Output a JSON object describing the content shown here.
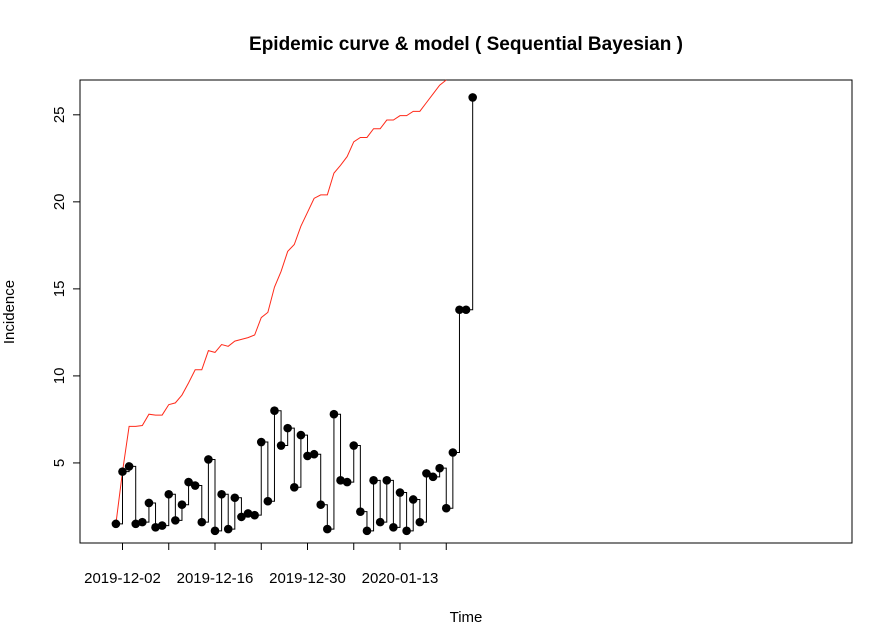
{
  "chart_data": {
    "type": "line",
    "title": "Epidemic curve & model ( Sequential Bayesian )",
    "xlabel": "Time",
    "ylabel": "Incidence",
    "x_start_date": "2019-11-30",
    "x_axis_ticks": [
      "2019-12-02",
      "2019-12-16",
      "2019-12-30",
      "2020-01-13"
    ],
    "y_axis_ticks": [
      5,
      10,
      15,
      20,
      25
    ],
    "ylim": [
      0.4,
      27
    ],
    "grid": false,
    "series": [
      {
        "name": "",
        "style": "step-points",
        "color": "#000000",
        "x": [
          "2019-12-01",
          "2019-12-02",
          "2019-12-03",
          "2019-12-04",
          "2019-12-05",
          "2019-12-06",
          "2019-12-07",
          "2019-12-08",
          "2019-12-09",
          "2019-12-10",
          "2019-12-11",
          "2019-12-12",
          "2019-12-13",
          "2019-12-14",
          "2019-12-15",
          "2019-12-16",
          "2019-12-17",
          "2019-12-18",
          "2019-12-19",
          "2019-12-20",
          "2019-12-21",
          "2019-12-22",
          "2019-12-23",
          "2019-12-24",
          "2019-12-25",
          "2019-12-26",
          "2019-12-27",
          "2019-12-28",
          "2019-12-29",
          "2019-12-30",
          "2019-12-31",
          "2020-01-01",
          "2020-01-02",
          "2020-01-03",
          "2020-01-04",
          "2020-01-05",
          "2020-01-06",
          "2020-01-07",
          "2020-01-08",
          "2020-01-09",
          "2020-01-10",
          "2020-01-11",
          "2020-01-12",
          "2020-01-13",
          "2020-01-14",
          "2020-01-15",
          "2020-01-16",
          "2020-01-17",
          "2020-01-18",
          "2020-01-19",
          "2020-01-20",
          "2020-01-21",
          "2020-01-22",
          "2020-01-23",
          "2020-01-24"
        ],
        "values": [
          1.5,
          4.5,
          4.8,
          1.5,
          1.6,
          2.7,
          1.3,
          1.4,
          3.2,
          1.7,
          2.6,
          3.9,
          3.7,
          1.6,
          5.2,
          1.1,
          3.2,
          1.2,
          3.0,
          1.9,
          2.1,
          2.0,
          6.2,
          2.8,
          8.0,
          6.0,
          7.0,
          3.6,
          6.6,
          5.4,
          5.5,
          2.6,
          1.2,
          7.8,
          4.0,
          3.9,
          6.0,
          2.2,
          1.1,
          4.0,
          1.6,
          4.0,
          1.3,
          3.3,
          1.1,
          2.9,
          1.6,
          4.4,
          4.2,
          4.7,
          2.4,
          5.6,
          13.8,
          13.8,
          26.0
        ]
      },
      {
        "name": "",
        "style": "line",
        "color": "#ff2a1a",
        "x": [
          "2019-12-01",
          "2019-12-02",
          "2019-12-03",
          "2019-12-04",
          "2019-12-05",
          "2019-12-06",
          "2019-12-07",
          "2019-12-08",
          "2019-12-09",
          "2019-12-10",
          "2019-12-11",
          "2019-12-12",
          "2019-12-13",
          "2019-12-14",
          "2019-12-15",
          "2019-12-16",
          "2019-12-17",
          "2019-12-18",
          "2019-12-19",
          "2019-12-20",
          "2019-12-21",
          "2019-12-22",
          "2019-12-23",
          "2019-12-24",
          "2019-12-25",
          "2019-12-26",
          "2019-12-27",
          "2019-12-28",
          "2019-12-29",
          "2019-12-30",
          "2019-12-31",
          "2020-01-01",
          "2020-01-02",
          "2020-01-03",
          "2020-01-04",
          "2020-01-05",
          "2020-01-06",
          "2020-01-07",
          "2020-01-08",
          "2020-01-09",
          "2020-01-10",
          "2020-01-11",
          "2020-01-12",
          "2020-01-13",
          "2020-01-14",
          "2020-01-15",
          "2020-01-16",
          "2020-01-17",
          "2020-01-18",
          "2020-01-19",
          "2020-01-20"
        ],
        "values": [
          1.5,
          4.5,
          7.1,
          7.1,
          7.15,
          7.8,
          7.75,
          7.75,
          8.35,
          8.45,
          8.9,
          9.6,
          10.35,
          10.35,
          11.45,
          11.35,
          11.8,
          11.7,
          12.0,
          12.1,
          12.2,
          12.35,
          13.35,
          13.65,
          15.1,
          16.0,
          17.15,
          17.55,
          18.6,
          19.4,
          20.2,
          20.4,
          20.4,
          21.65,
          22.1,
          22.6,
          23.45,
          23.7,
          23.7,
          24.2,
          24.2,
          24.7,
          24.7,
          24.95,
          24.95,
          25.2,
          25.2,
          25.7,
          26.2,
          26.7,
          27.0
        ]
      }
    ]
  }
}
